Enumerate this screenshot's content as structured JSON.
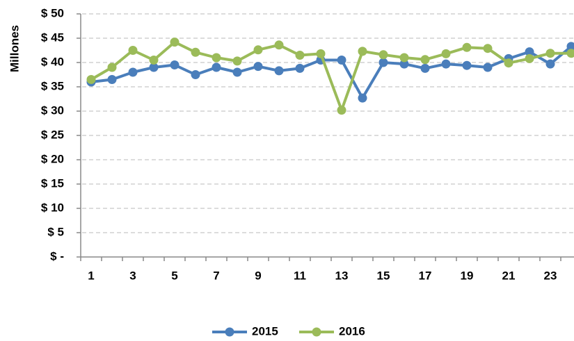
{
  "chart_data": {
    "type": "line",
    "y_label": "Millones",
    "categories": [
      "1",
      null,
      "3",
      null,
      "5",
      null,
      "7",
      null,
      "9",
      null,
      "11",
      null,
      "13",
      null,
      "15",
      null,
      "17",
      null,
      "19",
      null,
      "21",
      null,
      "23",
      null
    ],
    "series": [
      {
        "name": "2015",
        "color": "#4a7ebb",
        "values": [
          36,
          36.5,
          38,
          39,
          39.5,
          37.5,
          39,
          38,
          39.2,
          38.3,
          38.8,
          40.5,
          40.5,
          32.7,
          40,
          39.7,
          38.8,
          39.7,
          39.4,
          39,
          40.8,
          42.2,
          39.7,
          43.3
        ]
      },
      {
        "name": "2016",
        "color": "#9bbb59",
        "values": [
          36.5,
          39,
          42.5,
          40.5,
          44.2,
          42.1,
          41,
          40.3,
          42.6,
          43.6,
          41.5,
          41.8,
          30.2,
          42.3,
          41.6,
          41,
          40.6,
          41.8,
          43.1,
          42.9,
          39.9,
          40.8,
          41.9,
          41.9
        ]
      }
    ],
    "ylim": [
      0,
      50
    ],
    "yticks": [
      {
        "value": 0,
        "label": "$ -"
      },
      {
        "value": 5,
        "label": "$ 5"
      },
      {
        "value": 10,
        "label": "$ 10"
      },
      {
        "value": 15,
        "label": "$ 15"
      },
      {
        "value": 20,
        "label": "$ 20"
      },
      {
        "value": 25,
        "label": "$ 25"
      },
      {
        "value": 30,
        "label": "$ 30"
      },
      {
        "value": 35,
        "label": "$ 35"
      },
      {
        "value": 40,
        "label": "$ 40"
      },
      {
        "value": 45,
        "label": "$ 45"
      },
      {
        "value": 50,
        "label": "$ 50"
      }
    ],
    "grid": true,
    "legend": "bottom"
  }
}
